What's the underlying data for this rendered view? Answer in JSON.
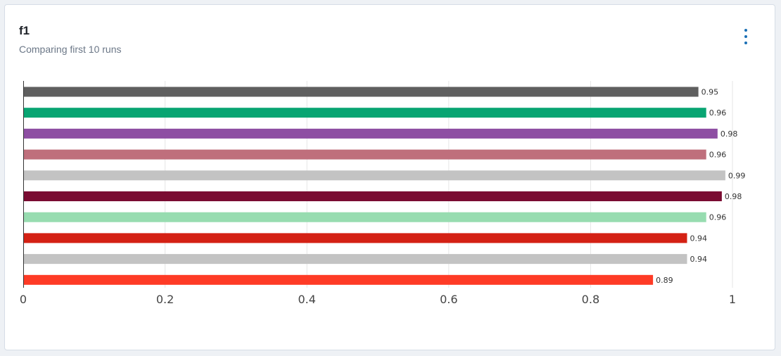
{
  "card": {
    "title": "f1",
    "subtitle": "Comparing first 10 runs",
    "menu_icon": "more-vertical-icon"
  },
  "colors": {
    "menu_accent": "#1a6fb5",
    "gridline": "#e6e6e6",
    "axis": "#333333"
  },
  "chart_data": {
    "type": "bar",
    "orientation": "horizontal",
    "title": "f1",
    "subtitle": "Comparing first 10 runs",
    "xlim": [
      0,
      1
    ],
    "x_ticks": [
      0,
      0.2,
      0.4,
      0.6,
      0.8,
      1
    ],
    "x_tick_labels": [
      "0",
      "0.2",
      "0.4",
      "0.6",
      "0.8",
      "1"
    ],
    "grid": true,
    "bars": [
      {
        "value": 0.952,
        "label": "0.95",
        "color": "#5f5f5f"
      },
      {
        "value": 0.963,
        "label": "0.96",
        "color": "#08a572"
      },
      {
        "value": 0.979,
        "label": "0.98",
        "color": "#8e4ea3"
      },
      {
        "value": 0.963,
        "label": "0.96",
        "color": "#bf6f7c"
      },
      {
        "value": 0.99,
        "label": "0.99",
        "color": "#c3c3c3"
      },
      {
        "value": 0.985,
        "label": "0.98",
        "color": "#7a0c32"
      },
      {
        "value": 0.963,
        "label": "0.96",
        "color": "#97dcb0"
      },
      {
        "value": 0.936,
        "label": "0.94",
        "color": "#d42114"
      },
      {
        "value": 0.936,
        "label": "0.94",
        "color": "#c3c3c3"
      },
      {
        "value": 0.888,
        "label": "0.89",
        "color": "#fe3b26"
      }
    ]
  }
}
